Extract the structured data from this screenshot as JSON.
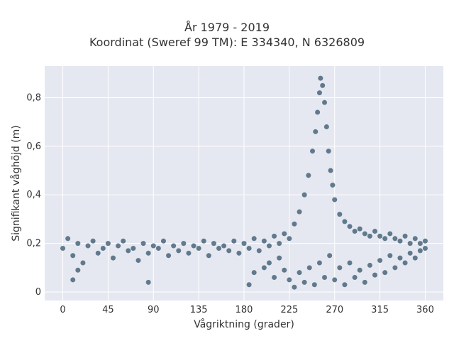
{
  "chart_data": {
    "type": "scatter",
    "title": [
      "År 1979 - 2019",
      "Koordinat (Sweref 99 TM): E 334340, N 6326809"
    ],
    "xlabel": "Vågriktning (grader)",
    "ylabel": "Signifikant våghöjd (m)",
    "xlim": [
      -18,
      378
    ],
    "ylim": [
      -0.035,
      0.93
    ],
    "xticks": [
      0,
      45,
      90,
      135,
      180,
      225,
      270,
      315,
      360
    ],
    "yticks": [
      0,
      0.2,
      0.4,
      0.6,
      0.8
    ],
    "ytick_labels": [
      "0",
      "0,2",
      "0,4",
      "0,6",
      "0,8"
    ],
    "grid": true,
    "colors": {
      "background": "#e5e8f0",
      "grid": "#ffffff",
      "marker": "#34546b"
    },
    "series": [
      {
        "values": [
          [
            0,
            0.18
          ],
          [
            5,
            0.22
          ],
          [
            10,
            0.15
          ],
          [
            15,
            0.2
          ],
          [
            20,
            0.12
          ],
          [
            25,
            0.19
          ],
          [
            30,
            0.21
          ],
          [
            35,
            0.16
          ],
          [
            40,
            0.18
          ],
          [
            45,
            0.2
          ],
          [
            50,
            0.14
          ],
          [
            55,
            0.19
          ],
          [
            60,
            0.21
          ],
          [
            65,
            0.17
          ],
          [
            70,
            0.18
          ],
          [
            75,
            0.13
          ],
          [
            80,
            0.2
          ],
          [
            85,
            0.16
          ],
          [
            90,
            0.19
          ],
          [
            95,
            0.18
          ],
          [
            100,
            0.21
          ],
          [
            105,
            0.15
          ],
          [
            110,
            0.19
          ],
          [
            115,
            0.17
          ],
          [
            120,
            0.2
          ],
          [
            125,
            0.16
          ],
          [
            130,
            0.19
          ],
          [
            135,
            0.18
          ],
          [
            140,
            0.21
          ],
          [
            145,
            0.15
          ],
          [
            150,
            0.2
          ],
          [
            155,
            0.18
          ],
          [
            160,
            0.19
          ],
          [
            165,
            0.17
          ],
          [
            170,
            0.21
          ],
          [
            175,
            0.16
          ],
          [
            180,
            0.2
          ],
          [
            185,
            0.18
          ],
          [
            190,
            0.22
          ],
          [
            195,
            0.17
          ],
          [
            200,
            0.21
          ],
          [
            205,
            0.19
          ],
          [
            210,
            0.23
          ],
          [
            215,
            0.2
          ],
          [
            220,
            0.24
          ],
          [
            225,
            0.22
          ],
          [
            230,
            0.28
          ],
          [
            235,
            0.33
          ],
          [
            240,
            0.4
          ],
          [
            244,
            0.48
          ],
          [
            248,
            0.58
          ],
          [
            251,
            0.66
          ],
          [
            253,
            0.74
          ],
          [
            255,
            0.82
          ],
          [
            256,
            0.88
          ],
          [
            258,
            0.85
          ],
          [
            260,
            0.78
          ],
          [
            262,
            0.68
          ],
          [
            264,
            0.58
          ],
          [
            266,
            0.5
          ],
          [
            268,
            0.44
          ],
          [
            270,
            0.38
          ],
          [
            275,
            0.32
          ],
          [
            280,
            0.29
          ],
          [
            285,
            0.27
          ],
          [
            290,
            0.25
          ],
          [
            295,
            0.26
          ],
          [
            300,
            0.24
          ],
          [
            305,
            0.23
          ],
          [
            310,
            0.25
          ],
          [
            315,
            0.23
          ],
          [
            320,
            0.22
          ],
          [
            325,
            0.24
          ],
          [
            330,
            0.22
          ],
          [
            335,
            0.21
          ],
          [
            340,
            0.23
          ],
          [
            345,
            0.2
          ],
          [
            350,
            0.22
          ],
          [
            355,
            0.2
          ],
          [
            360,
            0.21
          ],
          [
            225,
            0.05
          ],
          [
            230,
            0.02
          ],
          [
            235,
            0.08
          ],
          [
            240,
            0.04
          ],
          [
            245,
            0.1
          ],
          [
            250,
            0.03
          ],
          [
            255,
            0.12
          ],
          [
            260,
            0.06
          ],
          [
            265,
            0.15
          ],
          [
            270,
            0.05
          ],
          [
            275,
            0.1
          ],
          [
            280,
            0.03
          ],
          [
            285,
            0.12
          ],
          [
            290,
            0.06
          ],
          [
            295,
            0.09
          ],
          [
            300,
            0.04
          ],
          [
            305,
            0.11
          ],
          [
            310,
            0.07
          ],
          [
            315,
            0.13
          ],
          [
            320,
            0.08
          ],
          [
            325,
            0.15
          ],
          [
            330,
            0.1
          ],
          [
            335,
            0.14
          ],
          [
            340,
            0.12
          ],
          [
            345,
            0.16
          ],
          [
            350,
            0.14
          ],
          [
            355,
            0.17
          ],
          [
            360,
            0.18
          ],
          [
            10,
            0.05
          ],
          [
            15,
            0.09
          ],
          [
            85,
            0.04
          ],
          [
            185,
            0.03
          ],
          [
            190,
            0.08
          ],
          [
            200,
            0.1
          ],
          [
            205,
            0.12
          ],
          [
            210,
            0.06
          ],
          [
            215,
            0.14
          ],
          [
            220,
            0.09
          ]
        ]
      }
    ]
  }
}
